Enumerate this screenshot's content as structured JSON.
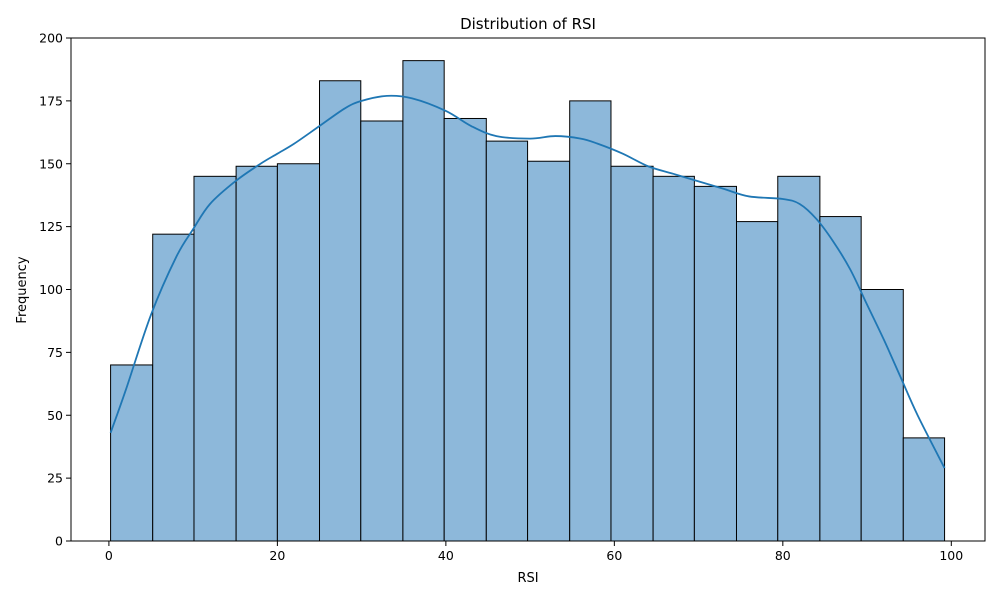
{
  "chart_data": {
    "type": "bar",
    "subtype": "histogram-with-kde",
    "title": "Distribution of RSI",
    "xlabel": "RSI",
    "ylabel": "Frequency",
    "xlim": [
      -4.5,
      104
    ],
    "ylim": [
      0,
      200
    ],
    "xticks": [
      0,
      20,
      40,
      60,
      80,
      100
    ],
    "yticks": [
      0,
      25,
      50,
      75,
      100,
      125,
      150,
      175,
      200
    ],
    "grid": false,
    "bar_color": "#8db8da",
    "bar_edge_color": "#000000",
    "kde_color": "#1f77b4",
    "bins": [
      {
        "start": 0.2,
        "end": 5.2,
        "count": 70
      },
      {
        "start": 5.2,
        "end": 10.1,
        "count": 122
      },
      {
        "start": 10.1,
        "end": 15.1,
        "count": 145
      },
      {
        "start": 15.1,
        "end": 20.0,
        "count": 149
      },
      {
        "start": 20.0,
        "end": 25.0,
        "count": 150
      },
      {
        "start": 25.0,
        "end": 29.9,
        "count": 183
      },
      {
        "start": 29.9,
        "end": 34.9,
        "count": 167
      },
      {
        "start": 34.9,
        "end": 39.8,
        "count": 191
      },
      {
        "start": 39.8,
        "end": 44.8,
        "count": 168
      },
      {
        "start": 44.8,
        "end": 49.7,
        "count": 159
      },
      {
        "start": 49.7,
        "end": 54.7,
        "count": 151
      },
      {
        "start": 54.7,
        "end": 59.6,
        "count": 175
      },
      {
        "start": 59.6,
        "end": 64.6,
        "count": 149
      },
      {
        "start": 64.6,
        "end": 69.5,
        "count": 145
      },
      {
        "start": 69.5,
        "end": 74.5,
        "count": 141
      },
      {
        "start": 74.5,
        "end": 79.4,
        "count": 127
      },
      {
        "start": 79.4,
        "end": 84.4,
        "count": 145
      },
      {
        "start": 84.4,
        "end": 89.3,
        "count": 129
      },
      {
        "start": 89.3,
        "end": 94.3,
        "count": 100
      },
      {
        "start": 94.3,
        "end": 99.2,
        "count": 41
      }
    ],
    "kde": {
      "x": [
        0.2,
        2,
        5,
        8,
        10,
        12,
        15,
        18,
        20,
        22,
        25,
        28,
        30,
        33,
        36,
        40,
        43,
        46,
        50,
        53,
        56,
        58,
        61,
        64,
        67,
        70,
        73,
        76,
        80,
        82,
        84,
        86,
        88,
        90,
        92,
        94,
        96,
        99.2
      ],
      "y": [
        43,
        60,
        90,
        113,
        124,
        134,
        143,
        150,
        154,
        158,
        165,
        172,
        175,
        177,
        176,
        171,
        165,
        161,
        160,
        161,
        160,
        158,
        154,
        149,
        146,
        143,
        140,
        137,
        136,
        134,
        128,
        119,
        108,
        94,
        80,
        65,
        50,
        29
      ]
    }
  }
}
